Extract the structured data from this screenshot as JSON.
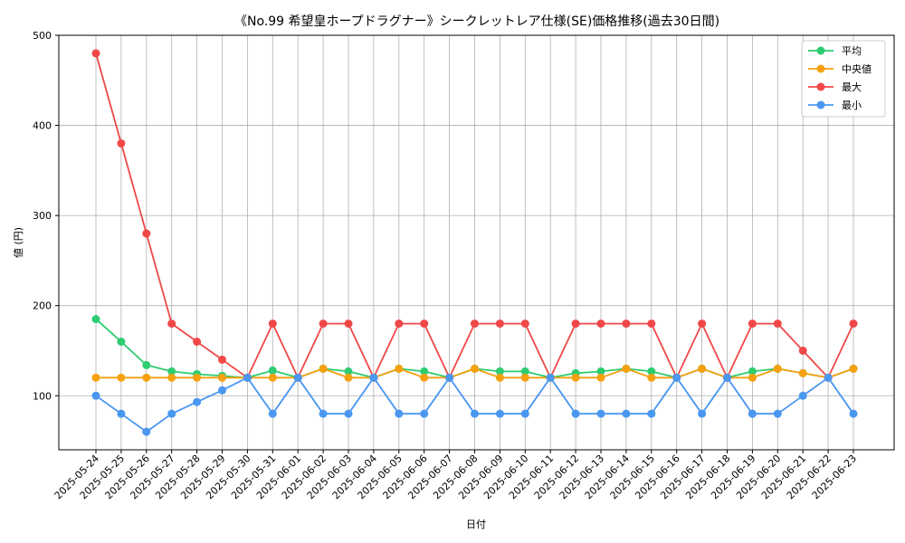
{
  "chart_data": {
    "type": "line",
    "title": "《No.99 希望皇ホープドラグナー》シークレットレア仕様(SE)価格推移(過去30日間)",
    "xlabel": "日付",
    "ylabel": "値 (円)",
    "ylim": [
      40,
      500
    ],
    "yticks": [
      100,
      200,
      300,
      400,
      500
    ],
    "grid": true,
    "legend_position": "top-right",
    "categories": [
      "2025-05-24",
      "2025-05-25",
      "2025-05-26",
      "2025-05-27",
      "2025-05-28",
      "2025-05-29",
      "2025-05-30",
      "2025-05-31",
      "2025-06-01",
      "2025-06-02",
      "2025-06-03",
      "2025-06-04",
      "2025-06-05",
      "2025-06-06",
      "2025-06-07",
      "2025-06-08",
      "2025-06-09",
      "2025-06-10",
      "2025-06-11",
      "2025-06-12",
      "2025-06-13",
      "2025-06-14",
      "2025-06-15",
      "2025-06-16",
      "2025-06-17",
      "2025-06-18",
      "2025-06-19",
      "2025-06-20",
      "2025-06-21",
      "2025-06-22",
      "2025-06-23"
    ],
    "series": [
      {
        "name": "平均",
        "color": "#2ecc71",
        "values": [
          185,
          160,
          134,
          127,
          124,
          122,
          120,
          128,
          120,
          130,
          127,
          120,
          130,
          127,
          120,
          130,
          127,
          127,
          120,
          125,
          127,
          130,
          127,
          120,
          130,
          120,
          127,
          130,
          125,
          120,
          130
        ]
      },
      {
        "name": "中央値",
        "color": "#f5a00f",
        "values": [
          120,
          120,
          120,
          120,
          120,
          120,
          120,
          120,
          120,
          130,
          120,
          120,
          130,
          120,
          120,
          130,
          120,
          120,
          120,
          120,
          120,
          130,
          120,
          120,
          130,
          120,
          120,
          130,
          125,
          120,
          130
        ]
      },
      {
        "name": "最大",
        "color": "#f04848",
        "values": [
          480,
          380,
          280,
          180,
          160,
          140,
          120,
          180,
          120,
          180,
          180,
          120,
          180,
          180,
          120,
          180,
          180,
          180,
          120,
          180,
          180,
          180,
          180,
          120,
          180,
          120,
          180,
          180,
          150,
          120,
          180
        ]
      },
      {
        "name": "最小",
        "color": "#4a97f0",
        "values": [
          100,
          80,
          60,
          80,
          93,
          106,
          120,
          80,
          120,
          80,
          80,
          120,
          80,
          80,
          120,
          80,
          80,
          80,
          120,
          80,
          80,
          80,
          80,
          120,
          80,
          120,
          80,
          80,
          100,
          120,
          80
        ]
      }
    ]
  }
}
